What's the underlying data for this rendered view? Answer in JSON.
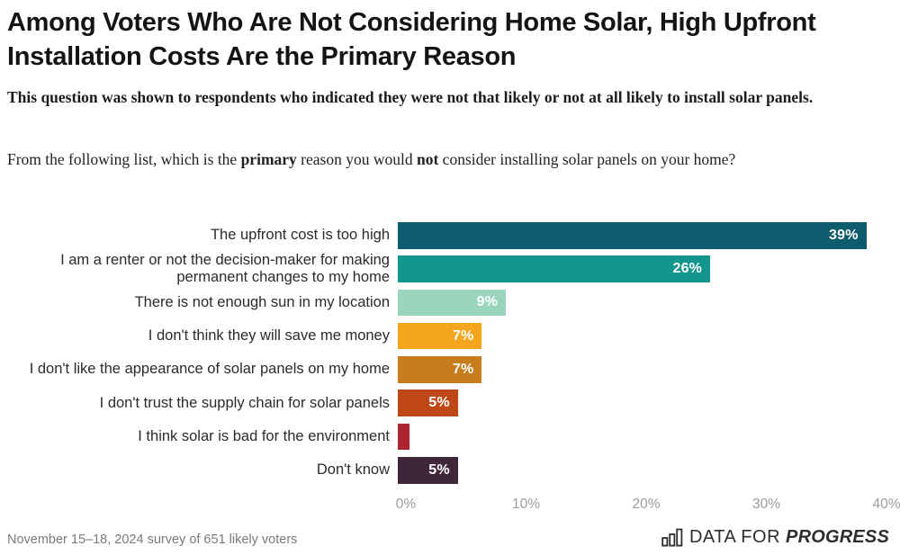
{
  "header": {
    "title": "Among Voters Who Are Not Considering Home Solar, High Upfront Installation Costs Are the Primary Reason",
    "subtitle": "This question was shown to respondents who indicated they were not that likely or not at all likely to install solar panels.",
    "question": {
      "part1": "From the following list, which is the ",
      "bold1": "primary",
      "part2": " reason you would ",
      "bold2": "not",
      "part3": " consider installing solar panels on your home?"
    }
  },
  "chart_data": {
    "type": "bar",
    "orientation": "horizontal",
    "title": "Primary reason for not considering installing solar panels",
    "categories": [
      "The upfront cost is too high",
      "I am a renter or not the decision-maker for making permanent changes to my home",
      "There is not enough sun in my location",
      "I don't think they will save me money",
      "I don't like the appearance of solar panels on my home",
      "I don't trust the supply chain for solar panels",
      "I think solar is bad for the environment",
      "Don't know"
    ],
    "values": [
      39,
      26,
      9,
      7,
      7,
      5,
      1,
      5
    ],
    "value_labels": [
      "39%",
      "26%",
      "9%",
      "7%",
      "7%",
      "5%",
      "",
      "5%"
    ],
    "colors": [
      "#0d5c6d",
      "#13968e",
      "#99d5bd",
      "#f3a51c",
      "#c87d1d",
      "#bf4617",
      "#ae2330",
      "#402639"
    ],
    "xlim": [
      0,
      40
    ],
    "x_ticks": [
      "0%",
      "10%",
      "20%",
      "30%",
      "40%"
    ],
    "x_tick_values": [
      0,
      10,
      20,
      30,
      40
    ],
    "grid": false,
    "legend": false
  },
  "footer": {
    "source": "November 15–18, 2024 survey of 651 likely voters",
    "logo": {
      "icon": "bar-chart-icon",
      "text_regular": "DATA FOR",
      "text_bold": "PROGRESS"
    }
  }
}
